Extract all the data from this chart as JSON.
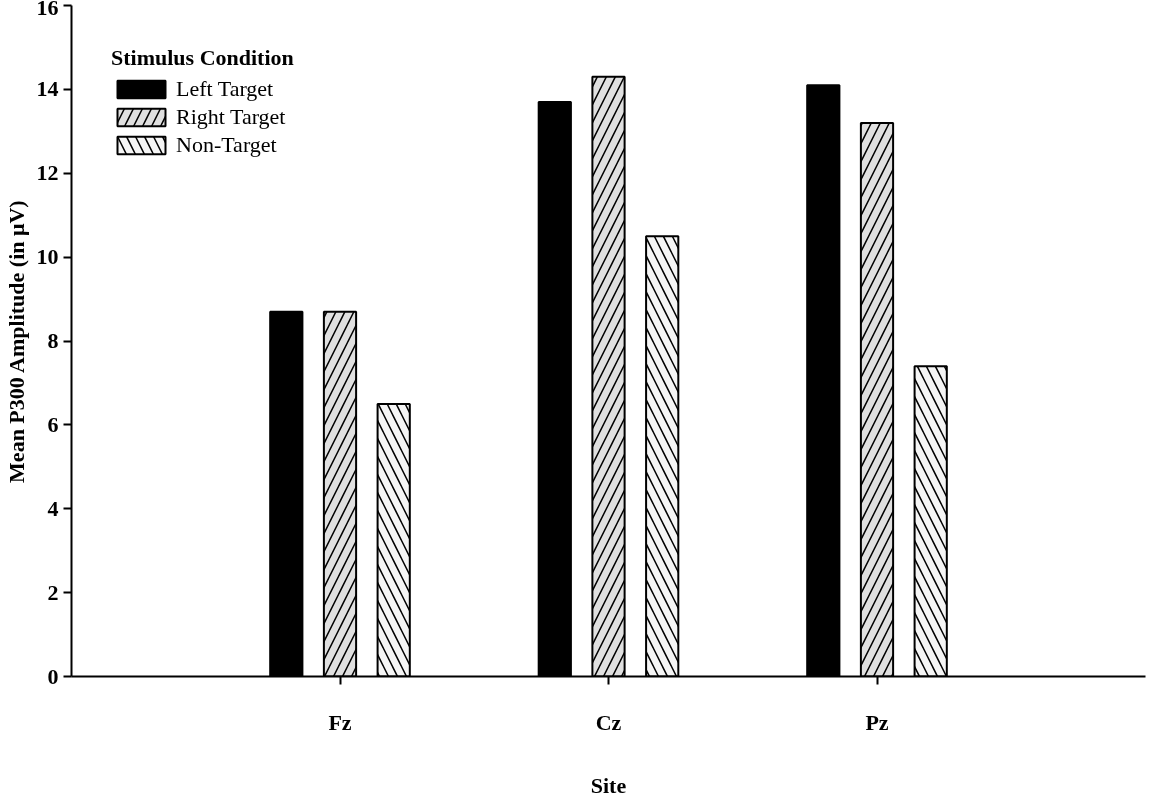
{
  "chart_data": {
    "type": "bar",
    "xlabel": "Site",
    "ylabel": "Mean P300 Amplitude (in μV)",
    "legend_title": "Stimulus Condition",
    "categories": [
      "Fz",
      "Cz",
      "Pz"
    ],
    "series": [
      {
        "name": "Left Target",
        "color": "#000000",
        "values": [
          8.7,
          13.7,
          14.1
        ]
      },
      {
        "name": "Right Target",
        "color": "#e0e0e0",
        "values": [
          8.7,
          14.3,
          13.2
        ]
      },
      {
        "name": "Non-Target",
        "color": "#f5f5f5",
        "values": [
          6.5,
          10.5,
          7.4
        ]
      }
    ],
    "ylim": [
      0,
      16
    ],
    "yticks": [
      0,
      2,
      4,
      6,
      8,
      10,
      12,
      14,
      16
    ],
    "grid": false,
    "legend": "top left"
  }
}
